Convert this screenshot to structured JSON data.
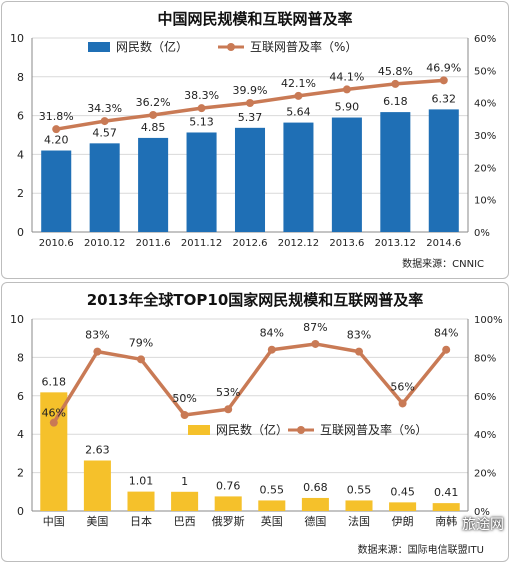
{
  "colors": {
    "bar_top": "#1f6fb5",
    "bar_bottom": "#f5c12b",
    "line": "#c97a55",
    "axis_text": "#222222",
    "grid": "#d9d9d9",
    "title": "#111111"
  },
  "chart_data": [
    {
      "type": "bar",
      "title": "中国网民规模和互联网普及率",
      "source": "数据来源：CNNIC",
      "categories": [
        "2010.6",
        "2010.12",
        "2011.6",
        "2011.12",
        "2012.6",
        "2012.12",
        "2013.6",
        "2013.12",
        "2014.6"
      ],
      "series": [
        {
          "name": "网民数（亿）",
          "type": "bar",
          "axis": "left",
          "values": [
            4.2,
            4.57,
            4.85,
            5.13,
            5.37,
            5.64,
            5.9,
            6.18,
            6.32
          ],
          "labels": [
            "4.20",
            "4.57",
            "4.85",
            "5.13",
            "5.37",
            "5.64",
            "5.90",
            "6.18",
            "6.32"
          ]
        },
        {
          "name": "互联网普及率（%）",
          "type": "line",
          "axis": "right",
          "values": [
            31.8,
            34.3,
            36.2,
            38.3,
            39.9,
            42.1,
            44.1,
            45.8,
            46.9
          ],
          "labels": [
            "31.8%",
            "34.3%",
            "36.2%",
            "38.3%",
            "39.9%",
            "42.1%",
            "44.1%",
            "45.8%",
            "46.9%"
          ]
        }
      ],
      "left_axis": {
        "min": 0,
        "max": 10,
        "ticks": [
          "0",
          "2",
          "4",
          "6",
          "8",
          "10"
        ]
      },
      "right_axis": {
        "min": 0,
        "max": 60,
        "ticks": [
          "0%",
          "10%",
          "20%",
          "30%",
          "40%",
          "50%",
          "60%"
        ]
      },
      "legend_position": "top"
    },
    {
      "type": "bar",
      "title": "2013年全球TOP10国家网民规模和互联网普及率",
      "source": "数据来源：国际电信联盟ITU",
      "categories": [
        "中国",
        "美国",
        "日本",
        "巴西",
        "俄罗斯",
        "英国",
        "德国",
        "法国",
        "伊朗",
        "南韩"
      ],
      "series": [
        {
          "name": "网民数（亿）",
          "type": "bar",
          "axis": "left",
          "values": [
            6.18,
            2.63,
            1.01,
            1,
            0.76,
            0.55,
            0.68,
            0.55,
            0.45,
            0.41
          ],
          "labels": [
            "6.18",
            "2.63",
            "1.01",
            "1",
            "0.76",
            "0.55",
            "0.68",
            "0.55",
            "0.45",
            "0.41"
          ]
        },
        {
          "name": "互联网普及率（%）",
          "type": "line",
          "axis": "right",
          "values": [
            46,
            83,
            79,
            50,
            53,
            84,
            87,
            83,
            56,
            84
          ],
          "labels": [
            "46%",
            "83%",
            "79%",
            "50%",
            "53%",
            "84%",
            "87%",
            "83%",
            "56%",
            "84%"
          ]
        }
      ],
      "left_axis": {
        "min": 0,
        "max": 10,
        "ticks": [
          "0",
          "2",
          "4",
          "6",
          "8",
          "10"
        ]
      },
      "right_axis": {
        "min": 0,
        "max": 100,
        "ticks": [
          "0%",
          "20%",
          "40%",
          "60%",
          "80%",
          "100%"
        ]
      },
      "legend_position": "center"
    }
  ],
  "watermark": "旅途网"
}
